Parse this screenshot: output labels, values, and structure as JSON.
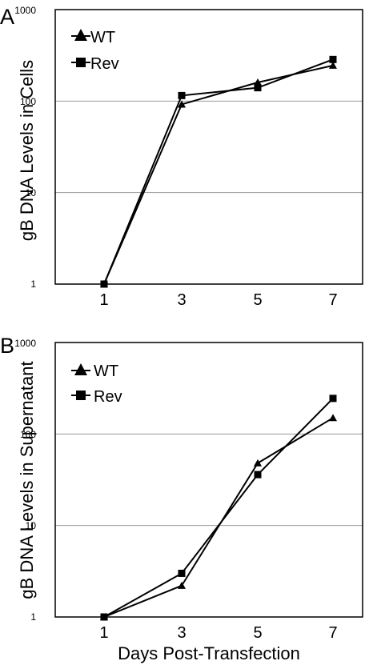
{
  "chart_data": [
    {
      "panel": "A",
      "type": "line",
      "ylabel": "gB DNA Levels in Cells",
      "xlabel": "",
      "x": [
        1,
        3,
        5,
        7
      ],
      "xticks": [
        "1",
        "3",
        "5",
        "7"
      ],
      "yscale": "log",
      "ylim": [
        1,
        1000
      ],
      "yticks": [
        "1",
        "10",
        "100",
        "1000"
      ],
      "grid": true,
      "legend_position": "top-left",
      "series": [
        {
          "name": "WT",
          "marker": "triangle",
          "values": [
            1,
            92,
            160,
            245
          ]
        },
        {
          "name": "Rev",
          "marker": "square",
          "values": [
            1,
            115,
            140,
            285
          ]
        }
      ]
    },
    {
      "panel": "B",
      "type": "line",
      "ylabel": "gB DNA Levels in Supernatant",
      "xlabel": "Days Post-Transfection",
      "x": [
        1,
        3,
        5,
        7
      ],
      "xticks": [
        "1",
        "3",
        "5",
        "7"
      ],
      "yscale": "log",
      "ylim": [
        1,
        1000
      ],
      "yticks": [
        "1",
        "10",
        "100",
        "1000"
      ],
      "grid": true,
      "legend_position": "top-left",
      "series": [
        {
          "name": "WT",
          "marker": "triangle",
          "values": [
            1,
            2.2,
            48,
            150
          ]
        },
        {
          "name": "Rev",
          "marker": "square",
          "values": [
            1,
            3,
            36,
            245
          ]
        }
      ]
    }
  ]
}
